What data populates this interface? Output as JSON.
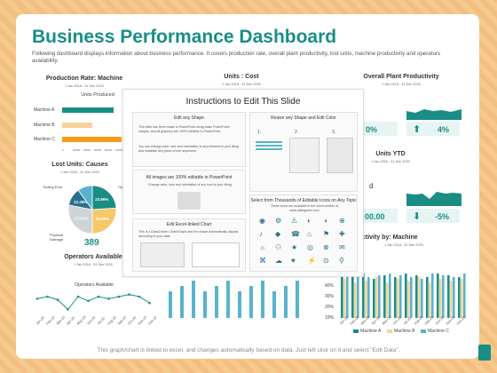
{
  "header": {
    "title": "Business Performance Dashboard",
    "subtitle": "Following dashboard displays information about business performance. It covers production rate, overall plant productivity, lost units, machine productivity and operators availability."
  },
  "date_range": "1 Jan 2018 - 31 Dec 2020",
  "production": {
    "title": "Production Rate: Machine",
    "chart_title": "Units Produced",
    "machines": [
      "Machine A",
      "Machine B",
      "Machine C"
    ],
    "values": [
      0.78,
      0.46,
      0.9
    ],
    "ticks": [
      "0",
      "20000",
      "40000",
      "60000",
      "80000",
      "100000",
      "120000"
    ]
  },
  "units_cost": {
    "title": "Units : Cost"
  },
  "overall": {
    "title": "Overall Plant Productivity",
    "kpi_a": "0%",
    "kpi_b": "4%"
  },
  "units_ytd": {
    "title": "Units YTD",
    "kpi_a": "00.00",
    "kpi_b": "-5%",
    "letter": "d"
  },
  "lost_units": {
    "title": "Lost Units: Causes",
    "labels": [
      "Tooling Error",
      "Physical Damage",
      "Op"
    ],
    "slices": [
      {
        "label": "23.99%",
        "value": 24,
        "color": "#1a8e85"
      },
      {
        "label": "26.09%",
        "value": 26,
        "color": "#f7c86a"
      },
      {
        "label": "27.81%",
        "value": 28,
        "color": "#cfd4d6"
      },
      {
        "label": "12.28%",
        "value": 12,
        "color": "#2b6f8f"
      },
      {
        "label": "",
        "value": 10,
        "color": "#59b3cc"
      }
    ],
    "total": "389"
  },
  "operators": {
    "title": "Operators Available",
    "chart_title": "Operators Available",
    "months": [
      "Jan-20",
      "Feb-20",
      "Mar-20",
      "Apr-20",
      "May-20",
      "Jun-20",
      "Jul-20",
      "Aug-20",
      "Sep-20",
      "Oct-20",
      "Nov-20",
      "Dec-20"
    ],
    "values": [
      28,
      30,
      27,
      18,
      30,
      26,
      30,
      28,
      30,
      32,
      30,
      24
    ]
  },
  "productivity": {
    "title": "ctivity by: Machine",
    "axis": [
      "40%",
      "30%",
      "20%",
      "10%",
      "0%"
    ],
    "months": [
      "Jan-20",
      "Feb-20",
      "Mar-20",
      "Apr-20",
      "May-20",
      "Jun-20",
      "Jul-20",
      "Aug-20",
      "Sep-20",
      "Oct-20",
      "Nov-20",
      "Dec-20"
    ],
    "legend": [
      "Machine A",
      "Machine B",
      "Machine C"
    ]
  },
  "instructions": {
    "title": "Instructions to Edit This Slide",
    "edit_shape": {
      "title": "Edit any Shape",
      "text1": "This slide has been made in PowerPoint using basic PowerPoint shapes, and all graphics are 100% editable in PowerPoint.",
      "text2": "You can change color, size and orientation of any element to your liking and establish any piece of text anywhere."
    },
    "images": {
      "title": "All images are 100% editable in PowerPoint",
      "text": "Change color, size and orientation of any icon to your liking"
    },
    "excel": {
      "title": "Edit Excel-linked Chart",
      "text": "This is a Data-Driven Chart/Graph and the shape automatically adjusts according to your data"
    },
    "resize": {
      "title": "Resize any Shape and Edit Color",
      "steps": [
        "1.",
        "2.",
        "3."
      ]
    },
    "icons": {
      "title": "Select from Thousands of Editable Icons on Any Topic",
      "text": "These icons are available in the icons section of www.slidegeeks.com"
    }
  },
  "footer": "This graph/chart is linked to excel, and changes automatically based on data. Just left click on it and select \"Edit Data\".",
  "colors": {
    "teal": "#1a8e85",
    "orange": "#f29c11",
    "sand": "#f6d29a",
    "blue": "#59b3cc",
    "page": "#f6c98e"
  }
}
